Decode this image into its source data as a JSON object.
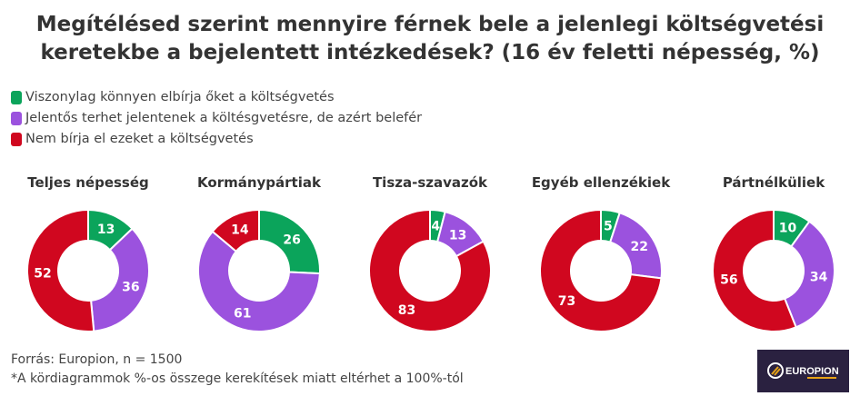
{
  "chart_data": {
    "type": "pie",
    "variant": "donut",
    "title": "Megítélésed szerint mennyire férnek bele a jelenlegi költségvetési keretekbe a bejelentett intézkedések? (16 év feletti népesség, %)",
    "legend_position": "top-left",
    "categories": [
      "Viszonylag könnyen elbírja őket a költségvetés",
      "Jelentős terhet jelentenek a költésgvetésre, de azért belefér",
      "Nem bírja el ezeket a költségvetés"
    ],
    "colors": [
      "#0ba45b",
      "#9b52de",
      "#d0071f"
    ],
    "charts": [
      {
        "title": "Teljes népesség",
        "values": [
          13,
          36,
          52
        ]
      },
      {
        "title": "Kormánypártiak",
        "values": [
          26,
          61,
          14
        ]
      },
      {
        "title": "Tisza-szavazók",
        "values": [
          4,
          13,
          83
        ]
      },
      {
        "title": "Egyéb ellenzékiek",
        "values": [
          5,
          22,
          73
        ]
      },
      {
        "title": "Pártnélküliek",
        "values": [
          10,
          34,
          56
        ]
      }
    ]
  },
  "footer": {
    "source": "Forrás: Europion, n = 1500",
    "note": "*A kördiagrammok %-os összege kerekítések miatt eltérhet a 100%-tól"
  },
  "logo": {
    "text": "EUROPION"
  }
}
